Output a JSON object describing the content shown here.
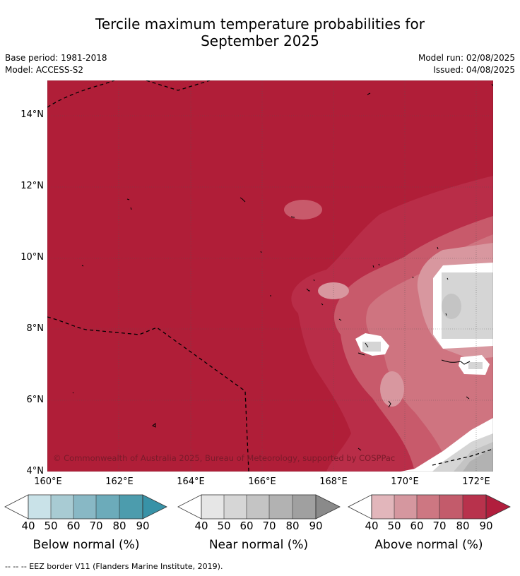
{
  "header": {
    "title_line1": "Tercile maximum temperature probabilities for",
    "title_line2": "September 2025",
    "base_period": "Base period: 1981-2018",
    "model": "Model: ACCESS-S2",
    "model_run": "Model run: 02/08/2025",
    "issued": "Issued: 04/08/2025"
  },
  "map": {
    "latitude_labels": [
      "14°N",
      "12°N",
      "10°N",
      "8°N",
      "6°N",
      "4°N"
    ],
    "longitude_labels": [
      "160°E",
      "162°E",
      "164°E",
      "166°E",
      "168°E",
      "170°E",
      "172°E"
    ],
    "copyright": "© Commonwealth of Australia 2025, Bureau of Meteorology, supported by COSPPac",
    "dominant_category": "Above normal 90%",
    "colors": {
      "above_90": "#b01e38",
      "above_80": "#b92d48",
      "above_70": "#c85a6b",
      "above_60": "#cf7480",
      "above_50": "#d8979f",
      "above_40": "#e2b8bc",
      "white": "#ffffff",
      "near_50": "#d5d5d5",
      "near_60": "#c4c4c4",
      "near_70": "#b2b2b2"
    }
  },
  "colorbars": [
    {
      "label": "Below normal (%)",
      "ticks": [
        "40",
        "50",
        "60",
        "70",
        "80",
        "90"
      ],
      "colors": [
        "#c9e2e8",
        "#a8cbd3",
        "#88b8c5",
        "#6cabba",
        "#4c9cad",
        "#3892a7"
      ]
    },
    {
      "label": "Near normal (%)",
      "ticks": [
        "40",
        "50",
        "60",
        "70",
        "80",
        "90"
      ],
      "colors": [
        "#e6e6e6",
        "#d6d6d6",
        "#c4c4c4",
        "#b2b2b2",
        "#a0a0a0",
        "#8a8a8a"
      ]
    },
    {
      "label": "Above normal (%)",
      "ticks": [
        "40",
        "50",
        "60",
        "70",
        "80",
        "90"
      ],
      "colors": [
        "#e2b6bb",
        "#d5979f",
        "#cd7782",
        "#c35b6b",
        "#b8324c",
        "#b11e3d"
      ]
    }
  ],
  "footnote": "--  --  -- EEZ border V11 (Flanders Marine Institute, 2019)."
}
